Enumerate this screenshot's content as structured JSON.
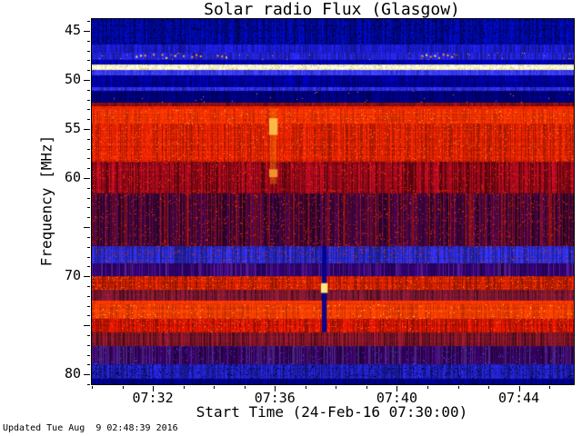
{
  "footer": "Updated Tue Aug  9 02:48:39 2016",
  "chart_data": {
    "type": "heatmap",
    "title": "Solar radio Flux (Glasgow)",
    "xlabel": "Start Time (24-Feb-16 07:30:00)",
    "ylabel": "Frequency [MHz]",
    "palette_note": "dynamic radio spectrogram: blue=low flux, red=high flux, yellow/white=strongest",
    "x_axis": {
      "start_time": "07:30:00",
      "date": "24-Feb-16",
      "range_minutes": [
        0,
        15.8
      ],
      "major_ticks": [
        {
          "minute": 2,
          "label": "07:32"
        },
        {
          "minute": 6,
          "label": "07:36"
        },
        {
          "minute": 10,
          "label": "07:40"
        },
        {
          "minute": 14,
          "label": "07:44"
        }
      ],
      "minor_tick_every_minutes": 1
    },
    "y_axis": {
      "range_mhz": [
        43.8,
        81.0
      ],
      "orientation": "45 MHz at top, 80 MHz at bottom",
      "major_ticks": [
        {
          "mhz": 45,
          "label": "45"
        },
        {
          "mhz": 50,
          "label": "50"
        },
        {
          "mhz": 55,
          "label": "55"
        },
        {
          "mhz": 60,
          "label": "60"
        },
        {
          "mhz": 65,
          "label": ""
        },
        {
          "mhz": 70,
          "label": "70"
        },
        {
          "mhz": 75,
          "label": ""
        },
        {
          "mhz": 80,
          "label": "80"
        }
      ]
    },
    "bands": [
      {
        "f0": 43.8,
        "f1": 46.4,
        "color": "#0008a0",
        "stripe": 0.35,
        "speckle": {
          "color": "#000028",
          "p": 0.1
        }
      },
      {
        "f0": 46.4,
        "f1": 47.2,
        "color": "#1a1ac8",
        "stripe": 0.3
      },
      {
        "f0": 47.2,
        "f1": 48.0,
        "color": "#2020c8",
        "stripe": 0.3,
        "speckle": {
          "color": "#ff9900",
          "p": 0.01
        }
      },
      {
        "f0": 48.0,
        "f1": 48.45,
        "color": "#0000b0",
        "stripe": 0.25
      },
      {
        "f0": 48.45,
        "f1": 48.95,
        "color": "#ffffd8",
        "stripe": 0.06,
        "speckle": {
          "color": "#ffdd66",
          "p": 0.15
        }
      },
      {
        "f0": 48.95,
        "f1": 49.5,
        "color": "#3b3bff",
        "stripe": 0.25
      },
      {
        "f0": 49.5,
        "f1": 50.7,
        "color": "#0000a0",
        "stripe": 0.3,
        "speckle": {
          "color": "#000030",
          "p": 0.06
        }
      },
      {
        "f0": 50.7,
        "f1": 51.15,
        "color": "#2e2ee0",
        "stripe": 0.3
      },
      {
        "f0": 51.15,
        "f1": 52.3,
        "color": "#000078",
        "stripe": 0.3,
        "speckle": {
          "color": "#ff8800",
          "p": 0.004
        }
      },
      {
        "f0": 52.3,
        "f1": 52.65,
        "color": "#801010",
        "stripe": 0.3
      },
      {
        "f0": 52.65,
        "f1": 53.0,
        "color": "#ff2200",
        "stripe": 0.15
      },
      {
        "f0": 53.0,
        "f1": 54.4,
        "color": "#f03000",
        "stripe": 0.2,
        "speckle": {
          "color": "#ff9933",
          "p": 0.03
        }
      },
      {
        "f0": 54.4,
        "f1": 58.3,
        "color": "#d82000",
        "stripe": 0.28,
        "speckle": {
          "color": "#ff6622",
          "p": 0.05
        }
      },
      {
        "f0": 58.3,
        "f1": 61.6,
        "color": "#8c0818",
        "stripe": 0.45,
        "speckle": {
          "color": "#ff3300",
          "p": 0.04
        }
      },
      {
        "f0": 61.6,
        "f1": 66.9,
        "color": "#38043c",
        "stripe": 0.5,
        "stripe_color": "#c01800",
        "speckle": {
          "color": "#d82800",
          "p": 0.05
        }
      },
      {
        "f0": 66.9,
        "f1": 68.7,
        "color": "#2828c8",
        "stripe": 0.35,
        "speckle": {
          "color": "#c83200",
          "p": 0.05
        }
      },
      {
        "f0": 68.7,
        "f1": 70.0,
        "color": "#2a0064",
        "stripe": 0.4,
        "stripe_color": "#7030a0"
      },
      {
        "f0": 70.0,
        "f1": 71.4,
        "color": "#c81e00",
        "stripe": 0.3,
        "speckle": {
          "color": "#ff7700",
          "p": 0.05
        }
      },
      {
        "f0": 71.4,
        "f1": 72.5,
        "color": "#6e1430",
        "stripe": 0.4,
        "stripe_color": "#a02020"
      },
      {
        "f0": 72.5,
        "f1": 72.9,
        "color": "#ff3300",
        "stripe": 0.12
      },
      {
        "f0": 72.9,
        "f1": 74.3,
        "color": "#f53c00",
        "stripe": 0.2,
        "speckle": {
          "color": "#ffcc44",
          "p": 0.02
        }
      },
      {
        "f0": 74.3,
        "f1": 75.7,
        "color": "#c81400",
        "stripe": 0.3,
        "speckle": {
          "color": "#ff6633",
          "p": 0.04
        }
      },
      {
        "f0": 75.7,
        "f1": 77.1,
        "color": "#6e1228",
        "stripe": 0.45,
        "stripe_color": "#b02020"
      },
      {
        "f0": 77.1,
        "f1": 79.0,
        "color": "#300055",
        "stripe": 0.45,
        "stripe_color": "#6040a0",
        "speckle": {
          "color": "#3c3cff",
          "p": 0.03
        }
      },
      {
        "f0": 79.0,
        "f1": 80.4,
        "color": "#1e1eb4",
        "stripe": 0.35,
        "speckle": {
          "color": "#000040",
          "p": 0.08
        }
      },
      {
        "f0": 80.4,
        "f1": 81.0,
        "color": "#000080",
        "stripe": 0.3
      }
    ],
    "events": [
      {
        "type": "streak",
        "minute": 5.95,
        "width_min": 0.22,
        "f0": 52.9,
        "f1": 60.6,
        "color": "#ff7700",
        "alpha": 0.45,
        "cores": [
          {
            "f0": 53.9,
            "f1": 55.6,
            "color": "#ffcc55",
            "alpha": 0.85
          },
          {
            "f0": 59.1,
            "f1": 59.9,
            "color": "#ffaa33",
            "alpha": 0.8
          }
        ]
      },
      {
        "type": "dropout",
        "minute": 7.62,
        "width_min": 0.16,
        "f0": 66.9,
        "f1": 75.7,
        "color": "#000090",
        "alpha": 0.92,
        "cores": [
          {
            "f0": 70.7,
            "f1": 71.7,
            "color": "#ffe680",
            "alpha": 1.0
          }
        ]
      },
      {
        "type": "dots",
        "f": 47.5,
        "color": "#ff9922",
        "spacing_min": 0.14,
        "segments": [
          [
            1.3,
            4.4
          ],
          [
            10.8,
            11.9
          ]
        ]
      }
    ]
  }
}
